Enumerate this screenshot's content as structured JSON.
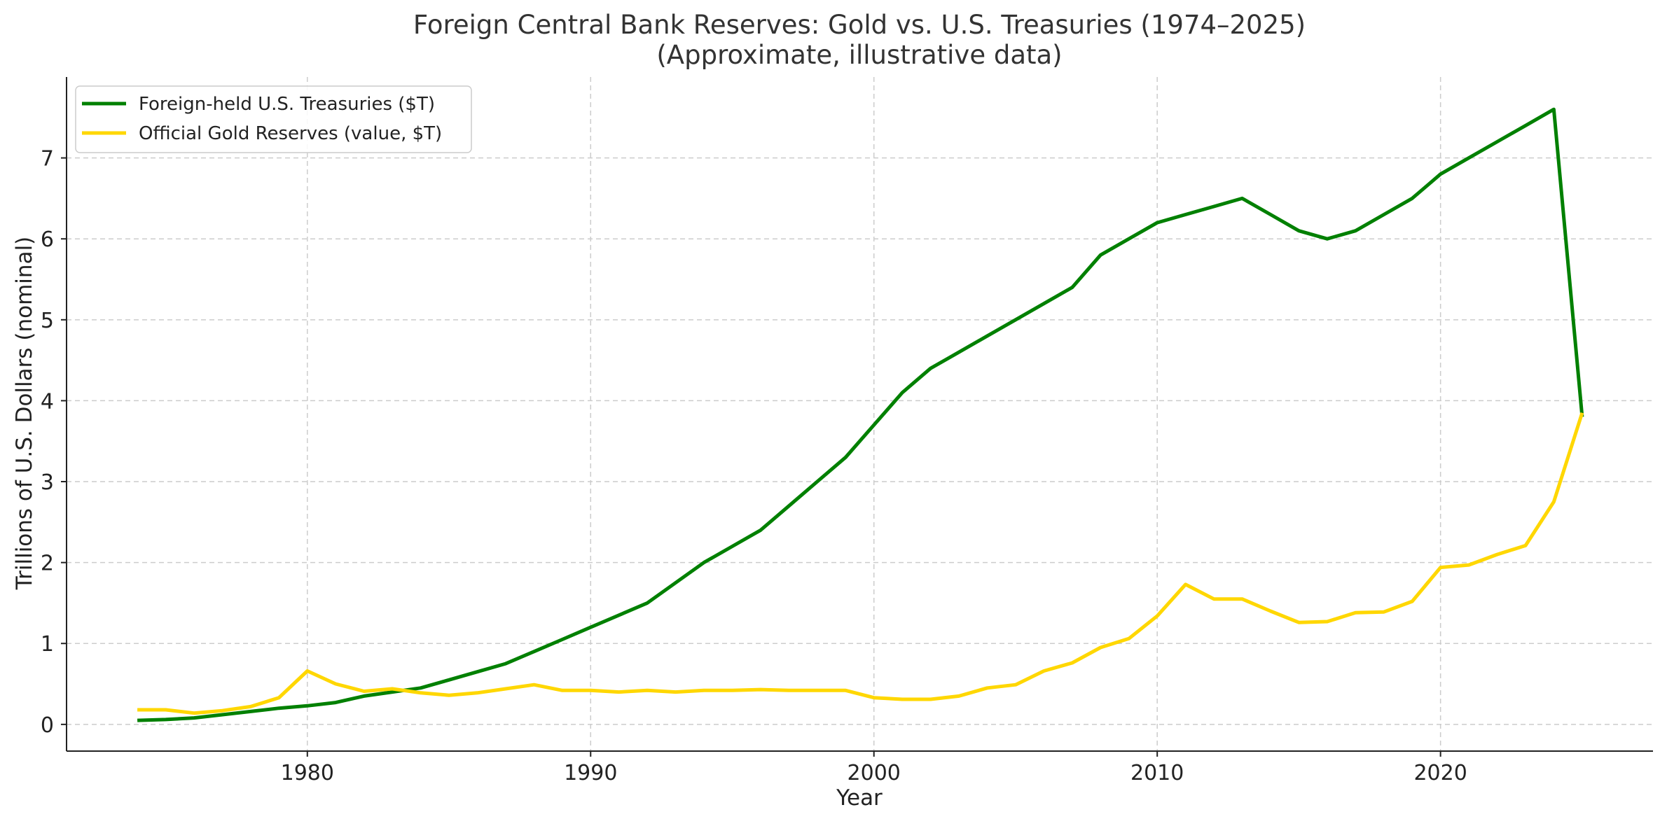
{
  "chart_data": {
    "type": "line",
    "title": "Foreign Central Bank Reserves: Gold vs. U.S. Treasuries (1974–2025)",
    "subtitle": "(Approximate, illustrative data)",
    "xlabel": "Year",
    "ylabel": "Trillions of U.S. Dollars (nominal)",
    "xlim": [
      1971.5,
      2027.5
    ],
    "ylim": [
      -0.33,
      8.0
    ],
    "xticks": [
      1980,
      1990,
      2000,
      2010,
      2020
    ],
    "yticks": [
      0,
      1,
      2,
      3,
      4,
      5,
      6,
      7
    ],
    "grid": true,
    "legend_position": "top-left",
    "x": [
      1974,
      1975,
      1976,
      1977,
      1978,
      1979,
      1980,
      1981,
      1982,
      1983,
      1984,
      1985,
      1986,
      1987,
      1988,
      1989,
      1990,
      1991,
      1992,
      1993,
      1994,
      1995,
      1996,
      1997,
      1998,
      1999,
      2000,
      2001,
      2002,
      2003,
      2004,
      2005,
      2006,
      2007,
      2008,
      2009,
      2010,
      2011,
      2012,
      2013,
      2014,
      2015,
      2016,
      2017,
      2018,
      2019,
      2020,
      2021,
      2022,
      2023,
      2024,
      2025
    ],
    "series": [
      {
        "name": "Foreign-held U.S. Treasuries ($T)",
        "color": "#008000",
        "values": [
          0.05,
          0.06,
          0.08,
          0.12,
          0.16,
          0.2,
          0.23,
          0.27,
          0.35,
          0.4,
          0.45,
          0.55,
          0.65,
          0.75,
          0.9,
          1.05,
          1.2,
          1.35,
          1.5,
          1.75,
          2.0,
          2.2,
          2.4,
          2.7,
          3.0,
          3.3,
          3.7,
          4.1,
          4.4,
          4.6,
          4.8,
          5.0,
          5.2,
          5.4,
          5.8,
          6.0,
          6.2,
          6.3,
          6.4,
          6.5,
          6.3,
          6.1,
          6.0,
          6.1,
          6.3,
          6.5,
          6.8,
          7.0,
          7.2,
          7.4,
          7.6,
          3.8
        ]
      },
      {
        "name": "Official Gold Reserves (value, $T)",
        "color": "#ffd700",
        "values": [
          0.18,
          0.18,
          0.14,
          0.17,
          0.22,
          0.33,
          0.66,
          0.5,
          0.41,
          0.44,
          0.39,
          0.36,
          0.39,
          0.44,
          0.49,
          0.42,
          0.42,
          0.4,
          0.42,
          0.4,
          0.42,
          0.42,
          0.43,
          0.42,
          0.42,
          0.42,
          0.33,
          0.31,
          0.31,
          0.35,
          0.45,
          0.49,
          0.66,
          0.76,
          0.95,
          1.06,
          1.34,
          1.73,
          1.55,
          1.55,
          1.4,
          1.26,
          1.27,
          1.38,
          1.39,
          1.52,
          1.94,
          1.97,
          2.1,
          2.21,
          2.75,
          3.85
        ]
      }
    ]
  }
}
